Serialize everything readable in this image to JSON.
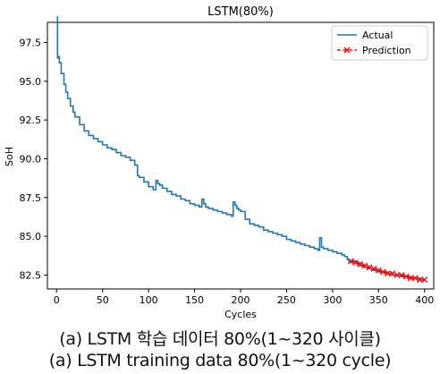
{
  "chart_data": {
    "type": "line",
    "title": "LSTM(80%)",
    "xlabel": "Cycles",
    "ylabel": "SoH",
    "xlim": [
      -10,
      410
    ],
    "ylim": [
      81.6,
      98.8
    ],
    "xticks": [
      0,
      50,
      100,
      150,
      200,
      250,
      300,
      350,
      400
    ],
    "yticks": [
      82.5,
      85.0,
      87.5,
      90.0,
      92.5,
      95.0,
      97.5
    ],
    "ytick_labels": [
      "82.5",
      "85.0",
      "87.5",
      "90.0",
      "92.5",
      "95.0",
      "97.5"
    ],
    "grid": false,
    "legend_position": "top-right",
    "series": [
      {
        "name": "Actual",
        "color": "#1f77b4",
        "style": "solid",
        "x": [
          1,
          1,
          2,
          3,
          5,
          8,
          10,
          12,
          15,
          18,
          20,
          25,
          30,
          35,
          40,
          45,
          50,
          55,
          60,
          65,
          70,
          75,
          80,
          85,
          88,
          90,
          95,
          100,
          105,
          108,
          110,
          112,
          115,
          120,
          125,
          130,
          135,
          140,
          145,
          150,
          155,
          158,
          160,
          162,
          165,
          170,
          175,
          180,
          185,
          190,
          192,
          194,
          196,
          198,
          200,
          205,
          210,
          215,
          220,
          225,
          230,
          235,
          240,
          245,
          250,
          255,
          260,
          265,
          270,
          275,
          280,
          284,
          286,
          288,
          290,
          295,
          300,
          305,
          310,
          313,
          316,
          318,
          320,
          325,
          330,
          335,
          340,
          345,
          350,
          355,
          360,
          365,
          370,
          375,
          380,
          385,
          390,
          395,
          400
        ],
        "y": [
          99.2,
          96.5,
          96.6,
          96.2,
          95.5,
          94.8,
          94.3,
          93.9,
          93.4,
          93.0,
          92.7,
          92.2,
          91.8,
          91.5,
          91.3,
          91.1,
          90.9,
          90.7,
          90.6,
          90.4,
          90.2,
          90.1,
          89.9,
          89.6,
          88.9,
          88.8,
          88.5,
          88.2,
          88.0,
          88.6,
          88.4,
          88.3,
          88.1,
          87.9,
          87.7,
          87.6,
          87.4,
          87.3,
          87.1,
          87.0,
          86.9,
          87.4,
          87.1,
          86.9,
          86.8,
          86.7,
          86.6,
          86.5,
          86.4,
          86.3,
          87.2,
          87.0,
          86.8,
          86.7,
          86.6,
          86.1,
          85.8,
          85.7,
          85.6,
          85.4,
          85.3,
          85.2,
          85.1,
          85.0,
          84.8,
          84.7,
          84.6,
          84.5,
          84.4,
          84.3,
          84.2,
          84.1,
          84.9,
          84.3,
          84.2,
          84.1,
          84.0,
          83.9,
          83.8,
          83.7,
          83.5,
          83.3,
          83.4,
          83.3,
          83.1,
          83.0,
          82.9,
          82.8,
          82.7,
          82.7,
          82.6,
          82.5,
          82.5,
          82.4,
          82.4,
          82.3,
          82.3,
          82.2,
          82.2
        ]
      },
      {
        "name": "Prediction",
        "color": "#ff0000",
        "style": "dashed",
        "marker": "x",
        "x": [
          320,
          325,
          330,
          335,
          340,
          345,
          350,
          355,
          360,
          365,
          370,
          375,
          380,
          385,
          390,
          395,
          400
        ],
        "y": [
          83.4,
          83.3,
          83.2,
          83.1,
          83.0,
          82.9,
          82.8,
          82.7,
          82.6,
          82.6,
          82.5,
          82.5,
          82.4,
          82.3,
          82.3,
          82.2,
          82.2
        ]
      }
    ]
  },
  "captions": {
    "korean": "(a) LSTM 학습 데이터 80%(1~320 사이클)",
    "english": "(a) LSTM training data 80%(1~320 cycle)"
  }
}
